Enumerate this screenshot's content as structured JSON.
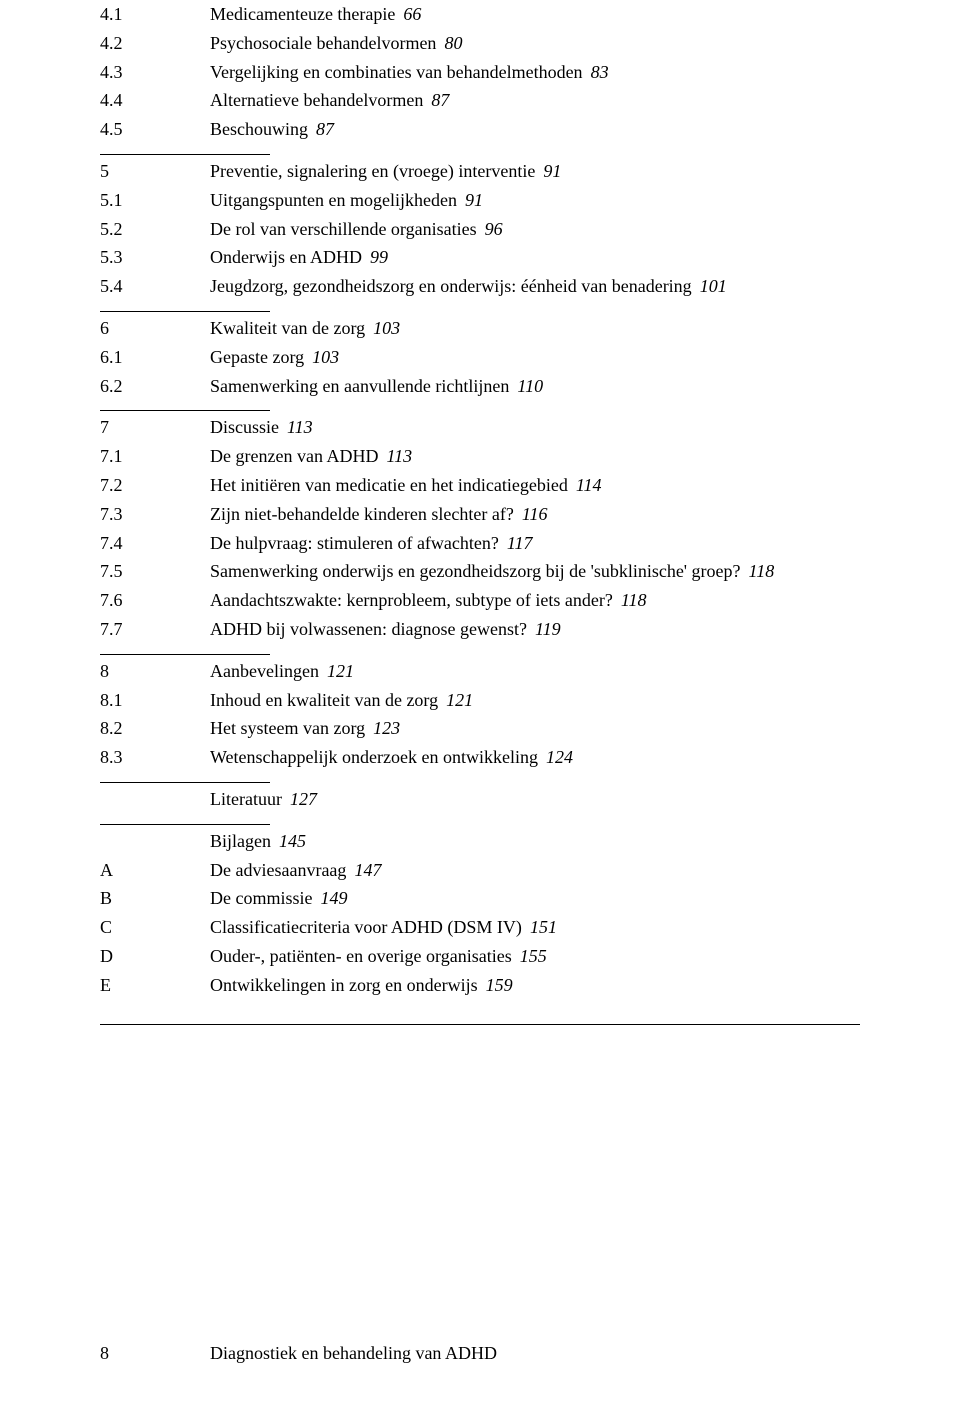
{
  "sections": [
    {
      "items": [
        {
          "num": "4.1",
          "title": "Medicamenteuze therapie",
          "page": "66"
        },
        {
          "num": "4.2",
          "title": "Psychosociale behandelvormen",
          "page": "80"
        },
        {
          "num": "4.3",
          "title": "Vergelijking en combinaties van behandelmethoden",
          "page": "83"
        },
        {
          "num": "4.4",
          "title": "Alternatieve behandelvormen",
          "page": "87"
        },
        {
          "num": "4.5",
          "title": "Beschouwing",
          "page": "87"
        }
      ]
    },
    {
      "items": [
        {
          "num": "5",
          "title": "Preventie, signalering en (vroege) interventie",
          "page": "91"
        },
        {
          "num": "5.1",
          "title": "Uitgangspunten en mogelijkheden",
          "page": "91"
        },
        {
          "num": "5.2",
          "title": "De rol van verschillende organisaties",
          "page": "96"
        },
        {
          "num": "5.3",
          "title": "Onderwijs en ADHD",
          "page": "99"
        },
        {
          "num": "5.4",
          "title": "Jeugdzorg, gezondheidszorg en onderwijs: éénheid van benadering",
          "page": "101"
        }
      ]
    },
    {
      "items": [
        {
          "num": "6",
          "title": "Kwaliteit van de zorg",
          "page": "103"
        },
        {
          "num": "6.1",
          "title": "Gepaste zorg",
          "page": "103"
        },
        {
          "num": "6.2",
          "title": "Samenwerking en aanvullende richtlijnen",
          "page": "110"
        }
      ]
    },
    {
      "items": [
        {
          "num": "7",
          "title": "Discussie",
          "page": "113"
        },
        {
          "num": "7.1",
          "title": "De grenzen van ADHD",
          "page": "113"
        },
        {
          "num": "7.2",
          "title": "Het initiëren van medicatie en het indicatiegebied",
          "page": "114"
        },
        {
          "num": "7.3",
          "title": "Zijn niet-behandelde kinderen slechter af?",
          "page": "116"
        },
        {
          "num": "7.4",
          "title": "De hulpvraag: stimuleren of afwachten?",
          "page": "117"
        },
        {
          "num": "7.5",
          "title": "Samenwerking onderwijs en gezondheidszorg bij de 'subklinische' groep?",
          "page": "118"
        },
        {
          "num": "7.6",
          "title": "Aandachtszwakte: kernprobleem, subtype of iets ander?",
          "page": "118"
        },
        {
          "num": "7.7",
          "title": "ADHD bij volwassenen: diagnose gewenst?",
          "page": "119"
        }
      ]
    },
    {
      "items": [
        {
          "num": "8",
          "title": "Aanbevelingen",
          "page": "121"
        },
        {
          "num": "8.1",
          "title": "Inhoud en kwaliteit van de zorg",
          "page": "121"
        },
        {
          "num": "8.2",
          "title": "Het systeem van zorg",
          "page": "123"
        },
        {
          "num": "8.3",
          "title": "Wetenschappelijk onderzoek en ontwikkeling",
          "page": "124"
        }
      ]
    },
    {
      "items": [
        {
          "num": "",
          "title": "Literatuur",
          "page": "127"
        }
      ]
    },
    {
      "items": [
        {
          "num": "",
          "title": "Bijlagen",
          "page": "145"
        },
        {
          "num": "A",
          "title": "De adviesaanvraag",
          "page": "147"
        },
        {
          "num": "B",
          "title": "De commissie",
          "page": "149"
        },
        {
          "num": "C",
          "title": "Classificatiecriteria voor ADHD (DSM IV)",
          "page": "151"
        },
        {
          "num": "D",
          "title": "Ouder-, patiënten- en overige organisaties",
          "page": "155"
        },
        {
          "num": "E",
          "title": "Ontwikkelingen in zorg en onderwijs",
          "page": "159"
        }
      ]
    }
  ],
  "footer": {
    "page_number": "8",
    "running_title": "Diagnostiek en behandeling van ADHD"
  }
}
